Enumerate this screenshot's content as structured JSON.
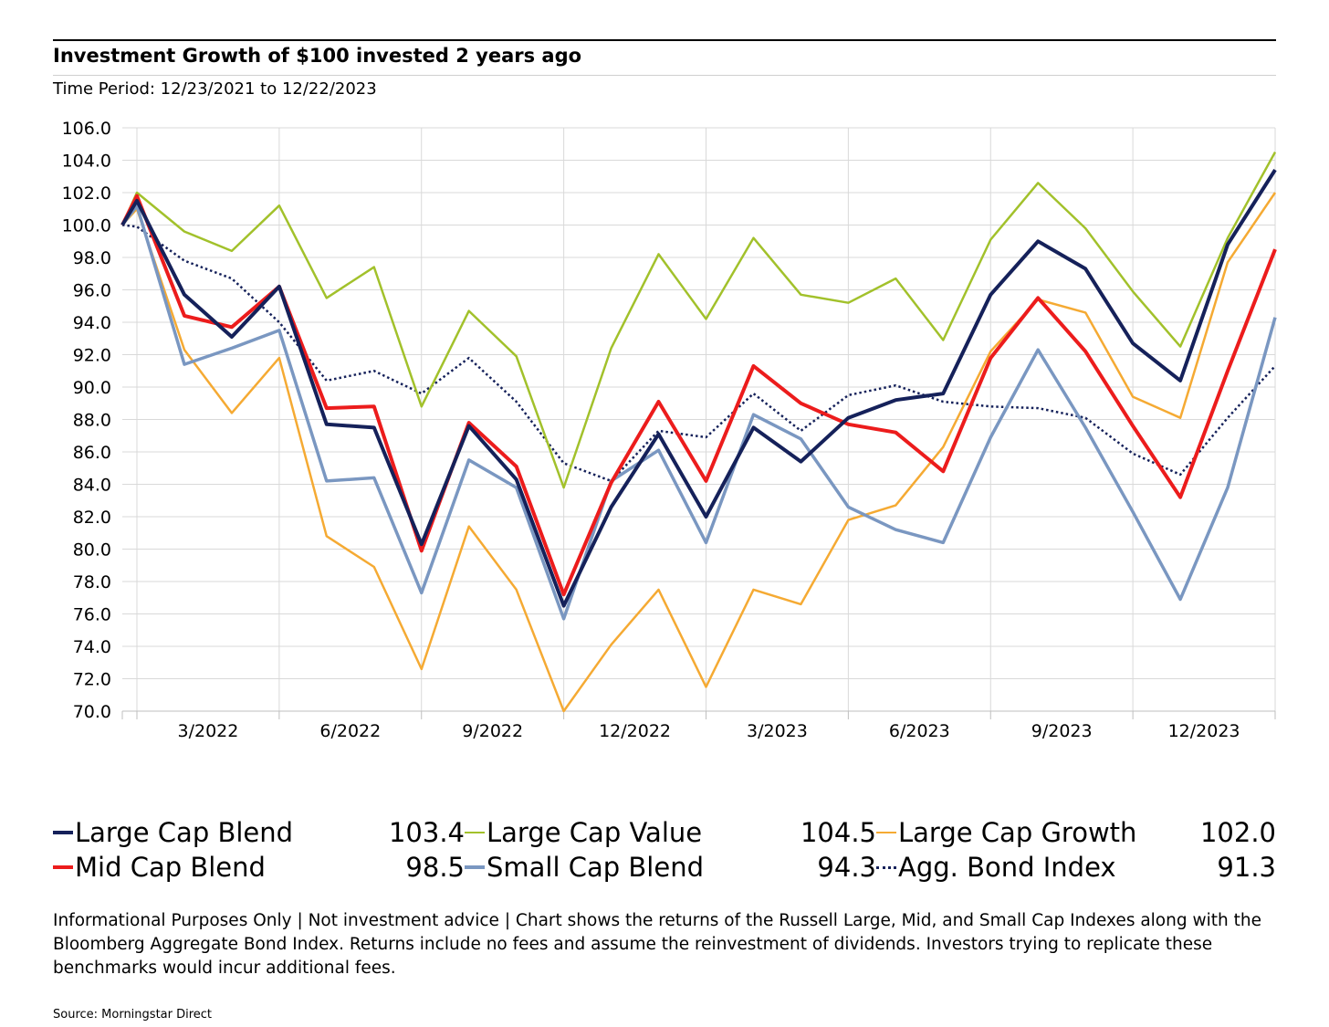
{
  "header": {
    "title": "Investment Growth of $100 invested 2 years ago",
    "subtitle": "Time Period: 12/23/2021 to 12/22/2023"
  },
  "chart_data": {
    "type": "line",
    "xlabel": "",
    "ylabel": "",
    "ylim": [
      70,
      106
    ],
    "yticks": [
      "106.0",
      "104.0",
      "102.0",
      "100.0",
      "98.0",
      "96.0",
      "94.0",
      "92.0",
      "90.0",
      "88.0",
      "86.0",
      "84.0",
      "82.0",
      "80.0",
      "78.0",
      "76.0",
      "74.0",
      "72.0",
      "70.0"
    ],
    "xtick_labels": [
      "3/2022",
      "6/2022",
      "9/2022",
      "12/2022",
      "3/2023",
      "6/2023",
      "9/2023",
      "12/2023"
    ],
    "x": [
      "12/23/2021",
      "12/31/2021",
      "1/31/2022",
      "2/28/2022",
      "3/31/2022",
      "4/30/2022",
      "5/31/2022",
      "6/30/2022",
      "7/31/2022",
      "8/31/2022",
      "9/30/2022",
      "10/31/2022",
      "11/30/2022",
      "12/31/2022",
      "1/31/2023",
      "2/28/2023",
      "3/31/2023",
      "4/30/2023",
      "5/31/2023",
      "6/30/2023",
      "7/31/2023",
      "8/31/2023",
      "9/30/2023",
      "10/31/2023",
      "11/30/2023",
      "12/22/2023"
    ],
    "grid": true,
    "legend_position": "bottom",
    "series": [
      {
        "name": "Large Cap Blend",
        "color": "#15215a",
        "style": "solid",
        "final": "103.4",
        "values": [
          100.0,
          101.5,
          95.7,
          93.1,
          96.2,
          87.7,
          87.5,
          80.3,
          87.6,
          84.3,
          76.5,
          82.6,
          87.1,
          82.0,
          87.5,
          85.4,
          88.1,
          89.2,
          89.6,
          95.7,
          99.0,
          97.3,
          92.7,
          90.4,
          98.8,
          103.4
        ]
      },
      {
        "name": "Large Cap Value",
        "color": "#a2c12b",
        "style": "solid",
        "final": "104.5",
        "values": [
          100.0,
          102.0,
          99.6,
          98.4,
          101.2,
          95.5,
          97.4,
          88.8,
          94.7,
          91.9,
          83.8,
          92.4,
          98.2,
          94.2,
          99.2,
          95.7,
          95.2,
          96.7,
          92.9,
          99.1,
          102.6,
          99.8,
          95.9,
          92.5,
          99.2,
          104.5
        ]
      },
      {
        "name": "Large Cap Growth",
        "color": "#f5aa33",
        "style": "solid",
        "final": "102.0",
        "values": [
          100.0,
          101.0,
          92.3,
          88.4,
          91.8,
          80.8,
          78.9,
          72.6,
          81.4,
          77.5,
          70.0,
          74.1,
          77.5,
          71.5,
          77.5,
          76.6,
          81.8,
          82.7,
          86.3,
          92.2,
          95.4,
          94.6,
          89.4,
          88.1,
          97.7,
          102.0
        ]
      },
      {
        "name": "Mid Cap Blend",
        "color": "#ec1c1c",
        "style": "solid",
        "final": "98.5",
        "values": [
          100.0,
          101.8,
          94.4,
          93.7,
          96.2,
          88.7,
          88.8,
          79.9,
          87.8,
          85.1,
          77.2,
          84.1,
          89.1,
          84.2,
          91.3,
          89.0,
          87.7,
          87.2,
          84.8,
          91.8,
          95.5,
          92.2,
          87.6,
          83.2,
          91.0,
          98.5
        ]
      },
      {
        "name": "Small Cap Blend",
        "color": "#7a97c1",
        "style": "solid",
        "final": "94.3",
        "values": [
          100.0,
          101.2,
          91.4,
          92.4,
          93.5,
          84.2,
          84.4,
          77.3,
          85.5,
          83.8,
          75.7,
          84.2,
          86.1,
          80.4,
          88.3,
          86.8,
          82.6,
          81.2,
          80.4,
          86.9,
          92.3,
          87.5,
          82.3,
          76.9,
          83.8,
          94.3
        ]
      },
      {
        "name": "Agg. Bond Index",
        "color": "#15215a",
        "style": "dotted",
        "final": "91.3",
        "values": [
          100.0,
          99.9,
          97.8,
          96.7,
          94.0,
          90.4,
          91.0,
          89.6,
          91.8,
          89.1,
          85.3,
          84.2,
          87.3,
          86.9,
          89.6,
          87.3,
          89.5,
          90.1,
          89.1,
          88.8,
          88.7,
          88.1,
          85.9,
          84.6,
          88.1,
          91.3
        ]
      }
    ]
  },
  "disclaimer": "Informational Purposes Only | Not investment advice | Chart shows the returns of the Russell Large, Mid, and Small Cap Indexes along with the Bloomberg Aggregate Bond Index. Returns include no fees and assume the reinvestment of dividends. Investors trying to replicate these benchmarks would incur additional fees.",
  "source": "Source: Morningstar Direct"
}
